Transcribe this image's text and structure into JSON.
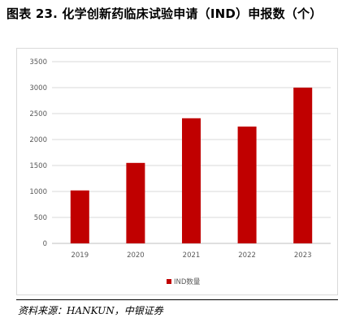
{
  "title": "图表 23. 化学创新药临床试验申请（IND）申报数（个）",
  "source": "资料来源：HANKUN，中银证券",
  "chart_data": {
    "type": "bar",
    "categories": [
      "2019",
      "2020",
      "2021",
      "2022",
      "2023"
    ],
    "series": [
      {
        "name": "IND数量",
        "values": [
          1020,
          1550,
          2410,
          2250,
          3000
        ],
        "color": "#c00000"
      }
    ],
    "ylim": [
      0,
      3500
    ],
    "yticks": [
      0,
      500,
      1000,
      1500,
      2000,
      2500,
      3000,
      3500
    ],
    "grid": true,
    "legend": "bottom-center"
  }
}
